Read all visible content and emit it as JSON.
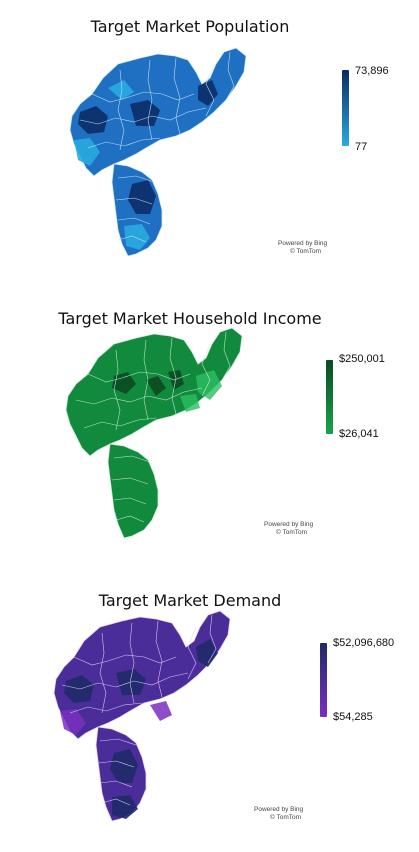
{
  "maps": [
    {
      "title": "Target Market Population",
      "legend": {
        "max_label": "73,896",
        "min_label": "77"
      },
      "colors": {
        "low": "#29aae1",
        "high": "#0b2a63",
        "mid": "#1a74c4",
        "line": "#cfe9f8"
      },
      "attribution": {
        "line1": "Powered by Bing",
        "line2": "© TomTom"
      }
    },
    {
      "title": "Target Market Household Income",
      "legend": {
        "max_label": "$250,001",
        "min_label": "$26,041"
      },
      "colors": {
        "low": "#19a34a",
        "high": "#0b4a23",
        "mid": "#128a3d",
        "line": "#cdeed8"
      },
      "attribution": {
        "line1": "Powered by Bing",
        "line2": "© TomTom"
      }
    },
    {
      "title": "Target Market Demand",
      "legend": {
        "max_label": "$52,096,680",
        "min_label": "$54,285"
      },
      "colors": {
        "low": "#7a2fbf",
        "high": "#1f2a6a",
        "mid": "#4b2d9a",
        "line": "#e3d4f5"
      },
      "attribution": {
        "line1": "Powered by Bing",
        "line2": "© TomTom"
      }
    }
  ]
}
